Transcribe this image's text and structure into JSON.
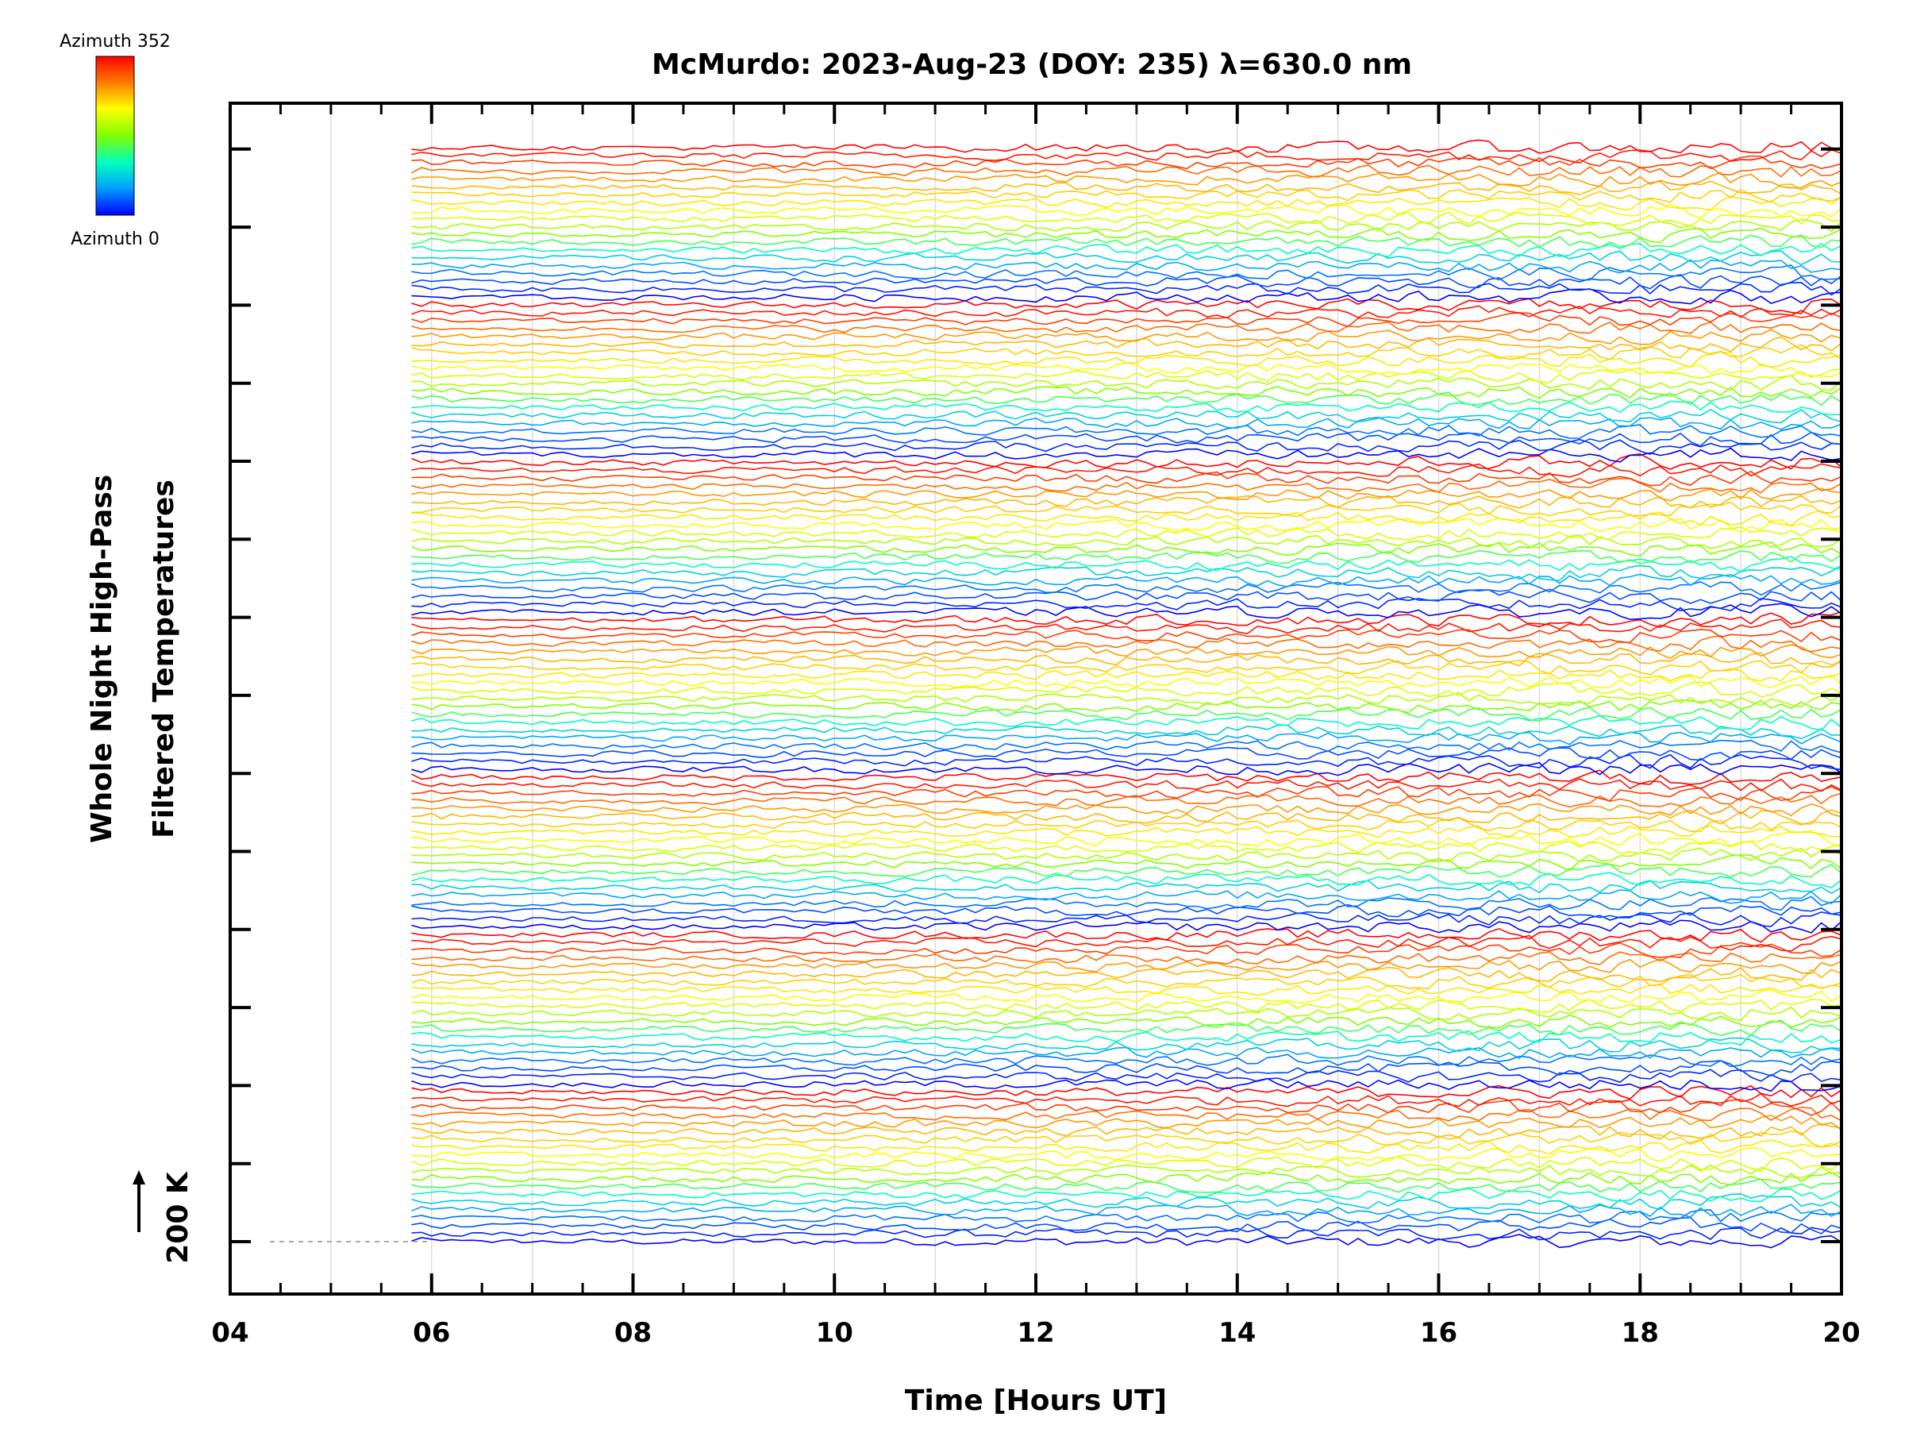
{
  "chart_data": {
    "type": "line",
    "title": "McMurdo: 2023-Aug-23 (DOY: 235) λ=630.0 nm",
    "xlabel": "Time [Hours UT]",
    "ylabel_line1": "Whole Night High-Pass",
    "ylabel_line2": "Filtered Temperatures",
    "scale_label": "200 K",
    "xlim": [
      4,
      20
    ],
    "x_ticks": [
      "04",
      "06",
      "08",
      "10",
      "12",
      "14",
      "16",
      "18",
      "20"
    ],
    "x_tick_values": [
      4,
      6,
      8,
      10,
      12,
      14,
      16,
      18,
      20
    ],
    "gridlines_x": [
      5,
      6,
      7,
      8,
      9,
      10,
      11,
      12,
      13,
      14,
      15,
      16,
      17,
      18,
      19,
      20
    ],
    "data_start_hour": 5.8,
    "data_end_hour": 20.0,
    "series_count": 140,
    "series_offset_K": 20,
    "azimuth_cycle_count": 7,
    "azimuth_steps_per_cycle": 20,
    "noise_amplitude_start_K": 6,
    "noise_amplitude_end_K": 22,
    "y_tick_count": 15,
    "colorbar": {
      "top_label": "Azimuth 352",
      "bottom_label": "Azimuth 0",
      "colors": [
        "#0000ff",
        "#00a0ff",
        "#00ffc0",
        "#80ff00",
        "#ffff00",
        "#ff8000",
        "#ff0000"
      ]
    }
  }
}
